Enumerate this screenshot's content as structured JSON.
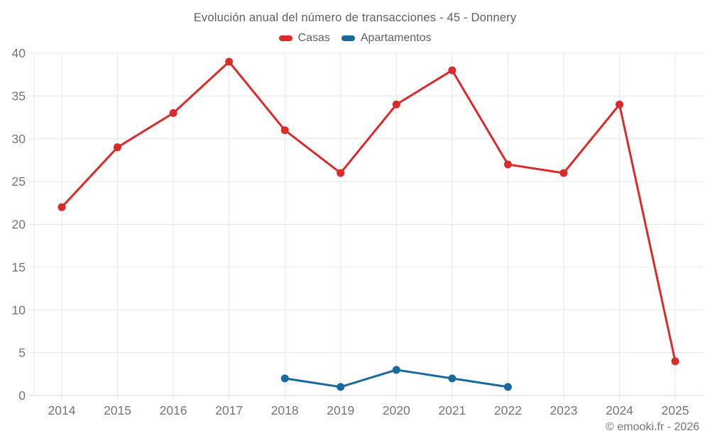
{
  "header": {
    "title": "Evolución anual del número de transacciones - 45 - Donnery"
  },
  "footer": {
    "credit": "© emooki.fr - 2026"
  },
  "chart_data": {
    "type": "line",
    "title": "Evolución anual del número de transacciones - 45 - Donnery",
    "categories": [
      "2014",
      "2015",
      "2016",
      "2017",
      "2018",
      "2019",
      "2020",
      "2021",
      "2022",
      "2023",
      "2024",
      "2025"
    ],
    "series": [
      {
        "name": "Casas",
        "color": "#dc2a2a",
        "values": [
          22,
          29,
          33,
          39,
          31,
          26,
          34,
          38,
          27,
          26,
          34,
          4
        ]
      },
      {
        "name": "Apartamentos",
        "color": "#17699e",
        "values": [
          null,
          null,
          null,
          null,
          2,
          1,
          3,
          2,
          1,
          null,
          null,
          null
        ]
      }
    ],
    "xlabel": "",
    "ylabel": "",
    "ylim": [
      0,
      40
    ],
    "yticks": [
      0,
      5,
      10,
      15,
      20,
      25,
      30,
      35,
      40
    ],
    "grid": true,
    "legend_position": "top",
    "colors": {
      "axis_text": "#757575",
      "grid_line": "#e7e7e7",
      "axis_line": "#d6d6d6",
      "title_text": "#5f5f5f",
      "background": "#ffffff"
    }
  }
}
